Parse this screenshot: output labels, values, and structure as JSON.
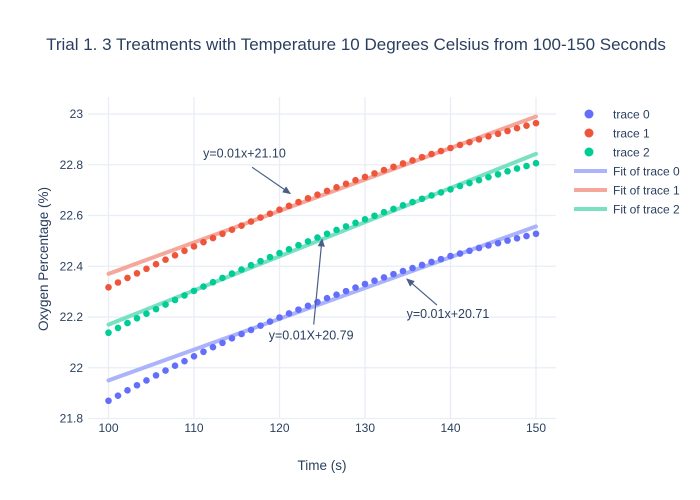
{
  "colors": {
    "text": "#2a3f5f",
    "grid": "#e8edf6",
    "arrow": "#4a5f87",
    "background": "#ffffff",
    "trace0": "#636efa",
    "trace1": "#ef553b",
    "trace2": "#00cc96",
    "fit0": "#abb3fb",
    "fit1": "#f5a79b",
    "fit2": "#79e0c2"
  },
  "chart_data": {
    "type": "scatter",
    "title": "Trial 1. 3 Treatments with Temperature 10 Degrees Celsius from 100-150 Seconds",
    "xlabel": "Time (s)",
    "ylabel": "Oxygen Percentage (%)",
    "xlim": [
      97.7,
      152.3
    ],
    "ylim": [
      21.8,
      23.07
    ],
    "grid": true,
    "xticks": [
      100,
      110,
      120,
      130,
      140,
      150
    ],
    "yticks": [
      21.8,
      22,
      22.2,
      22.4,
      22.6,
      22.8,
      23
    ],
    "ytick_labels": [
      "21.8",
      "22",
      "22.2",
      "22.4",
      "22.6",
      "22.8",
      "23"
    ],
    "x_common": [
      100,
      101.11,
      102.22,
      103.33,
      104.44,
      105.56,
      106.67,
      107.78,
      108.89,
      110,
      111.11,
      112.22,
      113.33,
      114.44,
      115.56,
      116.67,
      117.78,
      118.89,
      120,
      121.11,
      122.22,
      123.33,
      124.44,
      125.56,
      126.67,
      127.78,
      128.89,
      130,
      131.11,
      132.22,
      133.33,
      134.44,
      135.56,
      136.67,
      137.78,
      138.89,
      140,
      141.11,
      142.22,
      143.33,
      144.44,
      145.56,
      146.67,
      147.78,
      148.89,
      150
    ],
    "series": [
      {
        "name": "Fit of trace 0",
        "mode": "lines",
        "color": "#abb3fb",
        "x": [
          100,
          150
        ],
        "y": [
          21.95,
          22.557
        ]
      },
      {
        "name": "Fit of trace 1",
        "mode": "lines",
        "color": "#f5a79b",
        "x": [
          100,
          150
        ],
        "y": [
          22.37,
          22.99
        ]
      },
      {
        "name": "Fit of trace 2",
        "mode": "lines",
        "color": "#79e0c2",
        "x": [
          100,
          150
        ],
        "y": [
          22.17,
          22.843
        ]
      },
      {
        "name": "trace 0",
        "mode": "markers",
        "color": "#636efa",
        "use_common_x": true,
        "y": [
          21.87,
          21.89,
          21.911,
          21.931,
          21.95,
          21.97,
          21.989,
          22.008,
          22.026,
          22.045,
          22.063,
          22.081,
          22.098,
          22.116,
          22.133,
          22.149,
          22.166,
          22.182,
          22.198,
          22.214,
          22.229,
          22.244,
          22.259,
          22.274,
          22.288,
          22.302,
          22.316,
          22.33,
          22.343,
          22.356,
          22.369,
          22.381,
          22.393,
          22.405,
          22.417,
          22.428,
          22.44,
          22.45,
          22.461,
          22.472,
          22.482,
          22.491,
          22.501,
          22.51,
          22.519,
          22.528
        ]
      },
      {
        "name": "trace 1",
        "mode": "markers",
        "color": "#ef553b",
        "use_common_x": true,
        "y": [
          22.317,
          22.336,
          22.354,
          22.372,
          22.39,
          22.408,
          22.426,
          22.443,
          22.461,
          22.478,
          22.495,
          22.511,
          22.528,
          22.544,
          22.56,
          22.576,
          22.592,
          22.607,
          22.623,
          22.638,
          22.653,
          22.668,
          22.682,
          22.697,
          22.711,
          22.725,
          22.739,
          22.752,
          22.766,
          22.779,
          22.792,
          22.805,
          22.817,
          22.83,
          22.842,
          22.854,
          22.866,
          22.878,
          22.889,
          22.9,
          22.912,
          22.922,
          22.933,
          22.944,
          22.954,
          22.964
        ]
      },
      {
        "name": "trace 2",
        "mode": "markers",
        "color": "#00cc96",
        "use_common_x": true,
        "y": [
          22.138,
          22.157,
          22.176,
          22.195,
          22.213,
          22.231,
          22.249,
          22.267,
          22.285,
          22.303,
          22.32,
          22.337,
          22.354,
          22.371,
          22.387,
          22.404,
          22.42,
          22.436,
          22.452,
          22.467,
          22.483,
          22.498,
          22.513,
          22.528,
          22.543,
          22.557,
          22.571,
          22.585,
          22.599,
          22.613,
          22.626,
          22.64,
          22.653,
          22.666,
          22.679,
          22.691,
          22.703,
          22.716,
          22.728,
          22.739,
          22.751,
          22.762,
          22.774,
          22.785,
          22.795,
          22.806
        ]
      }
    ],
    "annotations": [
      {
        "text": "y=0.01x+21.10",
        "text_x": 115.9,
        "text_y": 22.844,
        "arrow_start_x": 116.8,
        "arrow_start_y": 22.79,
        "arrow_tip_x": 121.23,
        "arrow_tip_y": 22.687
      },
      {
        "text": "y=0.01X+20.79",
        "text_x": 123.7,
        "text_y": 22.127,
        "arrow_start_x": 124.0,
        "arrow_start_y": 22.17,
        "arrow_tip_x": 124.97,
        "arrow_tip_y": 22.506
      },
      {
        "text": "y=0.01x+20.71",
        "text_x": 139.7,
        "text_y": 22.212,
        "arrow_start_x": 138.42,
        "arrow_start_y": 22.247,
        "arrow_tip_x": 134.91,
        "arrow_tip_y": 22.349
      }
    ],
    "legend": {
      "position": "right",
      "items": [
        {
          "label": "trace 0",
          "swatch": "marker",
          "color": "#636efa"
        },
        {
          "label": "trace 1",
          "swatch": "marker",
          "color": "#ef553b"
        },
        {
          "label": "trace 2",
          "swatch": "marker",
          "color": "#00cc96"
        },
        {
          "label": "Fit of trace 0",
          "swatch": "line",
          "color": "#abb3fb"
        },
        {
          "label": "Fit of trace 1",
          "swatch": "line",
          "color": "#f5a79b"
        },
        {
          "label": "Fit of trace 2",
          "swatch": "line",
          "color": "#79e0c2"
        }
      ]
    }
  }
}
